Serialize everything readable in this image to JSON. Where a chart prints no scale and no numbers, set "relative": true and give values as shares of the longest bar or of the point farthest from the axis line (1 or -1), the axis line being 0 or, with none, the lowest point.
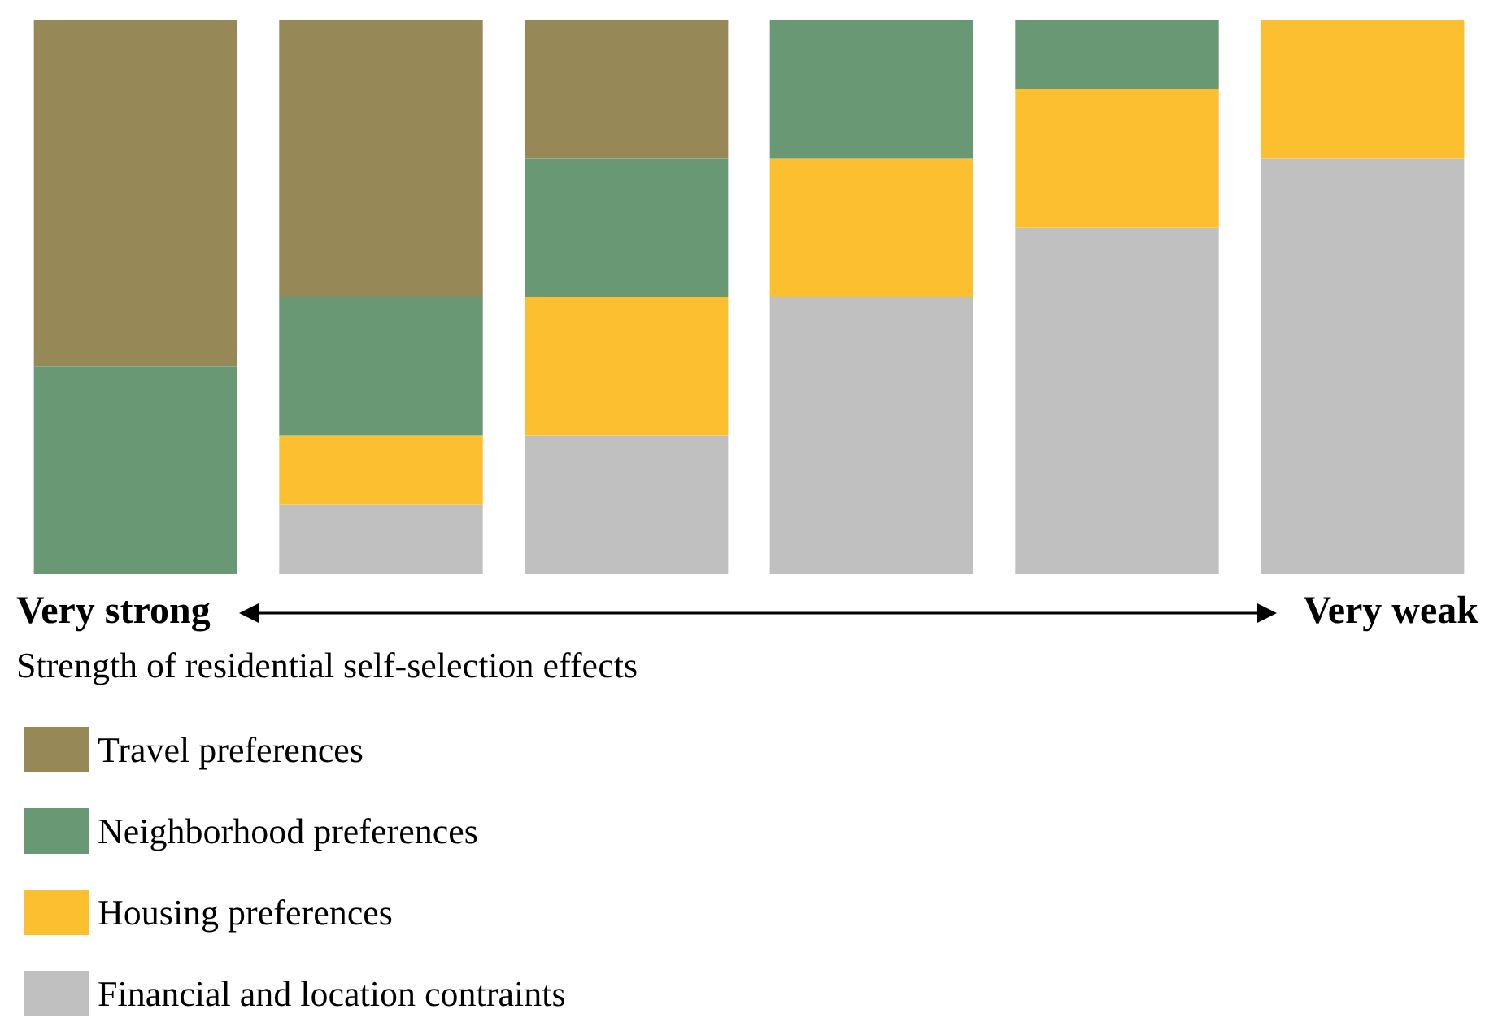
{
  "chart_data": {
    "type": "bar",
    "stacked": true,
    "relative": true,
    "categories": [
      null,
      null,
      null,
      null,
      null,
      null
    ],
    "xlabel": "Strength of residential self-selection effects",
    "annotations": [
      "Very strong",
      "Very weak"
    ],
    "series": [
      {
        "name": "Financial and location contraints",
        "color": "#c0c0c0",
        "values": [
          0,
          0.125,
          0.25,
          0.5,
          0.625,
          0.75
        ]
      },
      {
        "name": "Housing preferences",
        "color": "#fcbf30",
        "values": [
          0,
          0.125,
          0.25,
          0.25,
          0.25,
          0.25
        ]
      },
      {
        "name": "Neighborhood preferences",
        "color": "#689974",
        "values": [
          0.375,
          0.25,
          0.25,
          0.25,
          0.125,
          0
        ]
      },
      {
        "name": "Travel preferences",
        "color": "#968857",
        "values": [
          0.625,
          0.5,
          0.25,
          0,
          0,
          0
        ]
      }
    ],
    "grid": false,
    "legend": "bottom"
  }
}
